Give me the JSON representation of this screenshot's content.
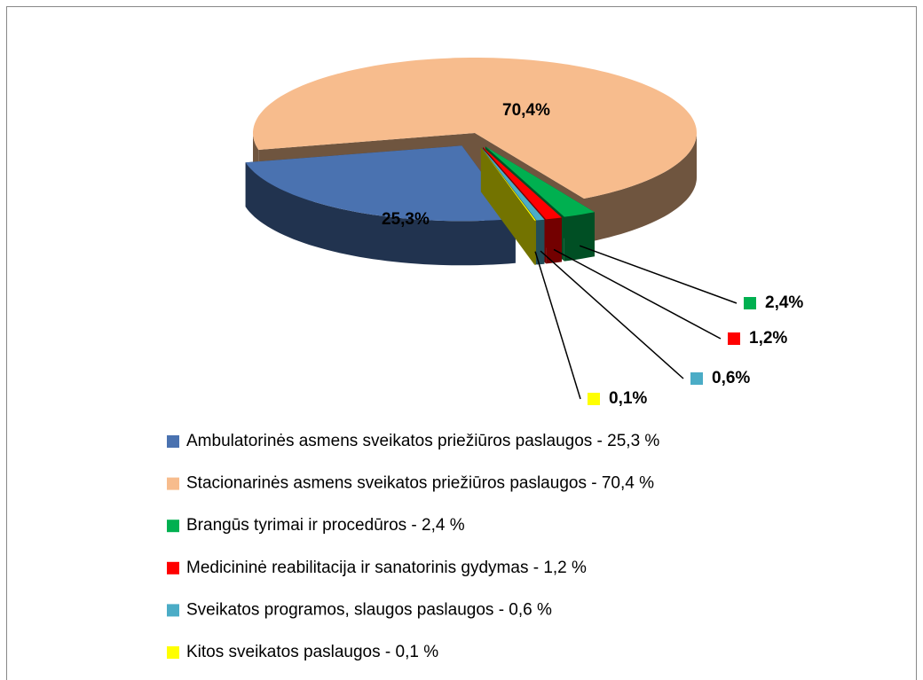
{
  "chart_data": {
    "type": "pie",
    "categories": [
      "Ambulatorinės asmens sveikatos priežiūros paslaugos - 25,3 %",
      "Stacionarinės asmens sveikatos priežiūros paslaugos - 70,4 %",
      "Brangūs tyrimai ir procedūros - 2,4 %",
      "Medicininė reabilitacija ir sanatorinis gydymas - 1,2 %",
      "Sveikatos programos, slaugos paslaugos - 0,6 %",
      "Kitos sveikatos paslaugos - 0,1 %"
    ],
    "values": [
      25.3,
      70.4,
      2.4,
      1.2,
      0.6,
      0.1
    ],
    "value_labels": [
      "25,3%",
      "70,4%",
      "2,4%",
      "1,2%",
      "0,6%",
      "0,1%"
    ],
    "colors": [
      "#4a72b0",
      "#f7bc8d",
      "#00b050",
      "#ff0000",
      "#4bacc6",
      "#ffff00"
    ],
    "legend": "bottom"
  }
}
